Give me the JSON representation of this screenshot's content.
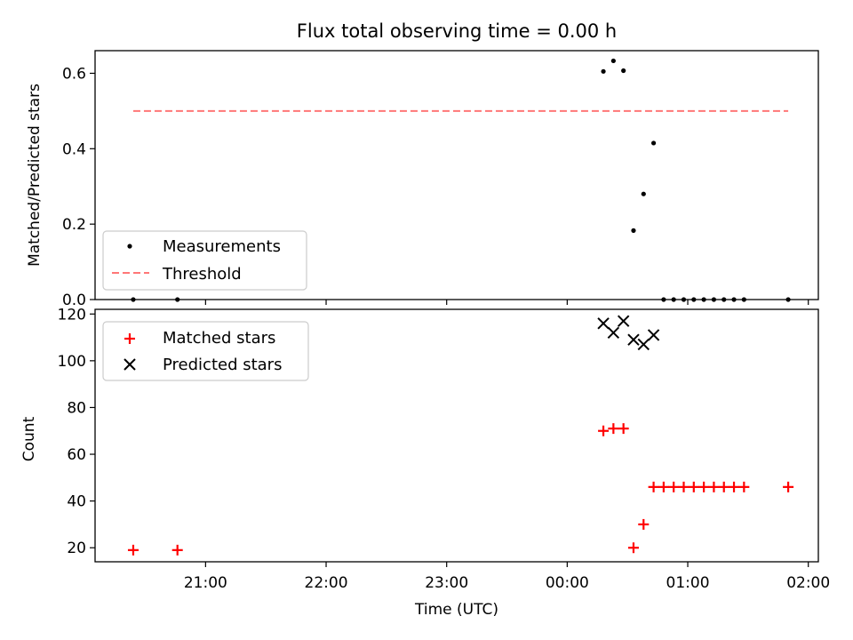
{
  "chart_data": [
    {
      "type": "scatter",
      "title": "Flux total observing time = 0.00 h",
      "xlabel": "",
      "ylabel": "Matched/Predicted stars",
      "ylim": [
        0,
        0.66
      ],
      "yticks": [
        "0.0",
        "0.2",
        "0.4",
        "0.6"
      ],
      "legend_placement": "lower-left",
      "series": [
        {
          "name": "Measurements",
          "marker": "dot",
          "color": "#000000",
          "points": [
            [
              "20:24",
              0.0
            ],
            [
              "20:46",
              0.0
            ],
            [
              "00:18",
              0.605
            ],
            [
              "00:23",
              0.633
            ],
            [
              "00:28",
              0.607
            ],
            [
              "00:33",
              0.183
            ],
            [
              "00:38",
              0.28
            ],
            [
              "00:43",
              0.415
            ],
            [
              "00:48",
              0.0
            ],
            [
              "00:53",
              0.0
            ],
            [
              "00:58",
              0.0
            ],
            [
              "01:03",
              0.0
            ],
            [
              "01:08",
              0.0
            ],
            [
              "01:13",
              0.0
            ],
            [
              "01:18",
              0.0
            ],
            [
              "01:23",
              0.0
            ],
            [
              "01:28",
              0.0
            ],
            [
              "01:50",
              0.0
            ]
          ]
        },
        {
          "name": "Threshold",
          "style": "dashed-line",
          "color": "#ff7777",
          "points": [
            [
              "20:24",
              0.5
            ],
            [
              "01:50",
              0.5
            ]
          ]
        }
      ]
    },
    {
      "type": "scatter",
      "title": "",
      "xlabel": "Time (UTC)",
      "ylabel": "Count",
      "ylim": [
        14,
        122
      ],
      "yticks": [
        "20",
        "40",
        "60",
        "80",
        "100",
        "120"
      ],
      "xticks": [
        "21:00",
        "22:00",
        "23:00",
        "00:00",
        "01:00",
        "02:00"
      ],
      "legend_placement": "upper-left",
      "series": [
        {
          "name": "Matched stars",
          "marker": "plus",
          "color": "#ff0000",
          "points": [
            [
              "20:24",
              19
            ],
            [
              "20:46",
              19
            ],
            [
              "00:18",
              70
            ],
            [
              "00:23",
              71
            ],
            [
              "00:28",
              71
            ],
            [
              "00:33",
              20
            ],
            [
              "00:38",
              30
            ],
            [
              "00:43",
              46
            ],
            [
              "00:48",
              46
            ],
            [
              "00:53",
              46
            ],
            [
              "00:58",
              46
            ],
            [
              "01:03",
              46
            ],
            [
              "01:08",
              46
            ],
            [
              "01:13",
              46
            ],
            [
              "01:18",
              46
            ],
            [
              "01:23",
              46
            ],
            [
              "01:28",
              46
            ],
            [
              "01:50",
              46
            ]
          ]
        },
        {
          "name": "Predicted stars",
          "marker": "x",
          "color": "#000000",
          "points": [
            [
              "00:18",
              116
            ],
            [
              "00:23",
              112
            ],
            [
              "00:28",
              117
            ],
            [
              "00:33",
              109
            ],
            [
              "00:38",
              107
            ],
            [
              "00:43",
              111
            ]
          ]
        }
      ]
    }
  ]
}
